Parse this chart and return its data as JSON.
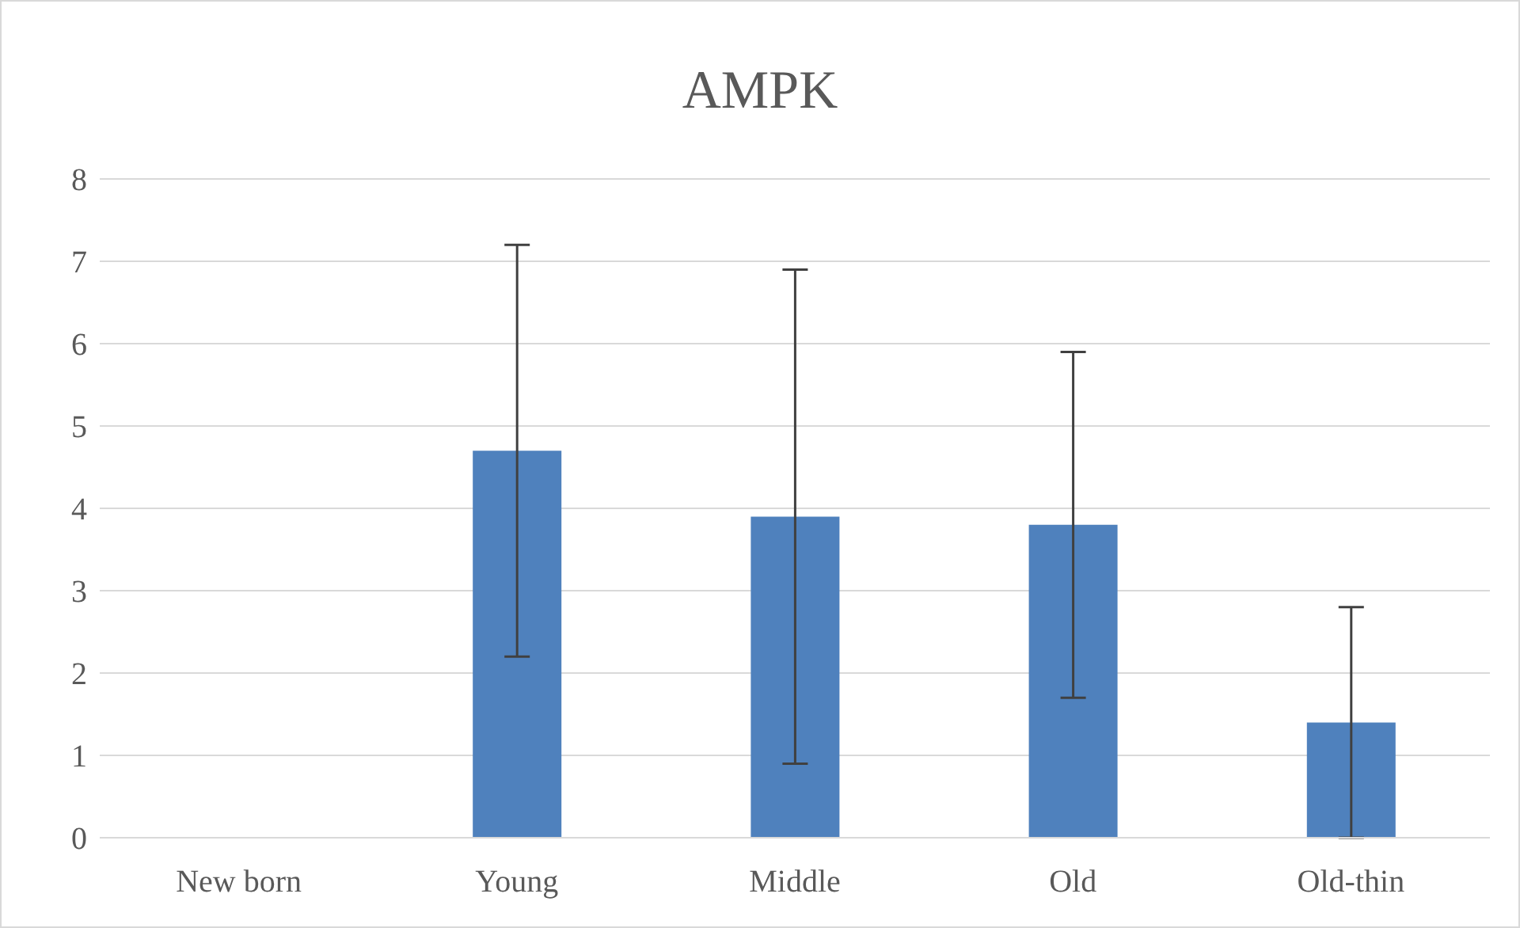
{
  "chart_data": {
    "type": "bar",
    "title": "AMPK",
    "categories": [
      "New born",
      "Young",
      "Middle",
      "Old",
      "Old-thin"
    ],
    "values": [
      0,
      4.7,
      3.9,
      3.8,
      1.4
    ],
    "errors": [
      null,
      2.5,
      3.0,
      2.1,
      1.4
    ],
    "color": "#4f81bd",
    "ylim": [
      0,
      8
    ],
    "yticks": [
      0,
      1,
      2,
      3,
      4,
      5,
      6,
      7,
      8
    ],
    "grid": "y"
  }
}
